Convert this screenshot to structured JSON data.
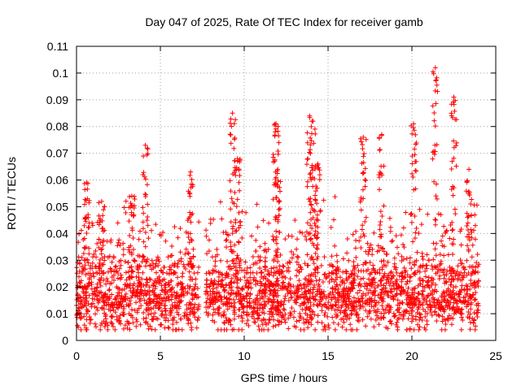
{
  "chart_data": {
    "type": "scatter",
    "title": "Day 047 of 2025, Rate Of TEC Index for receiver gamb",
    "xlabel": "GPS time / hours",
    "ylabel": "ROTI / TECUs",
    "xlim": [
      0,
      25
    ],
    "ylim": [
      0,
      0.11
    ],
    "xticks": [
      0,
      5,
      10,
      15,
      20,
      25
    ],
    "yticks": [
      0,
      0.01,
      0.02,
      0.03,
      0.04,
      0.05,
      0.06,
      0.07,
      0.08,
      0.09,
      0.1,
      0.11
    ],
    "xtick_labels": [
      "0",
      "5",
      "10",
      "15",
      "20",
      "25"
    ],
    "ytick_labels": [
      "0",
      "0.01",
      "0.02",
      "0.03",
      "0.04",
      "0.05",
      "0.06",
      "0.07",
      "0.08",
      "0.09",
      "0.1",
      "0.11"
    ],
    "grid": true,
    "marker": "+",
    "color": "#ff0000",
    "gaps_hours": [
      [
        7.3,
        7.7
      ]
    ],
    "peaks": [
      {
        "x": 0.6,
        "y": 0.059
      },
      {
        "x": 1.5,
        "y": 0.052
      },
      {
        "x": 3.3,
        "y": 0.054
      },
      {
        "x": 4.1,
        "y": 0.073
      },
      {
        "x": 6.8,
        "y": 0.063
      },
      {
        "x": 9.3,
        "y": 0.085
      },
      {
        "x": 9.6,
        "y": 0.068
      },
      {
        "x": 11.9,
        "y": 0.081
      },
      {
        "x": 12.0,
        "y": 0.064
      },
      {
        "x": 13.9,
        "y": 0.084
      },
      {
        "x": 14.1,
        "y": 0.082
      },
      {
        "x": 14.4,
        "y": 0.066
      },
      {
        "x": 17.1,
        "y": 0.076
      },
      {
        "x": 18.2,
        "y": 0.077
      },
      {
        "x": 20.1,
        "y": 0.081
      },
      {
        "x": 21.4,
        "y": 0.102
      },
      {
        "x": 22.5,
        "y": 0.091
      },
      {
        "x": 23.4,
        "y": 0.064
      }
    ]
  }
}
